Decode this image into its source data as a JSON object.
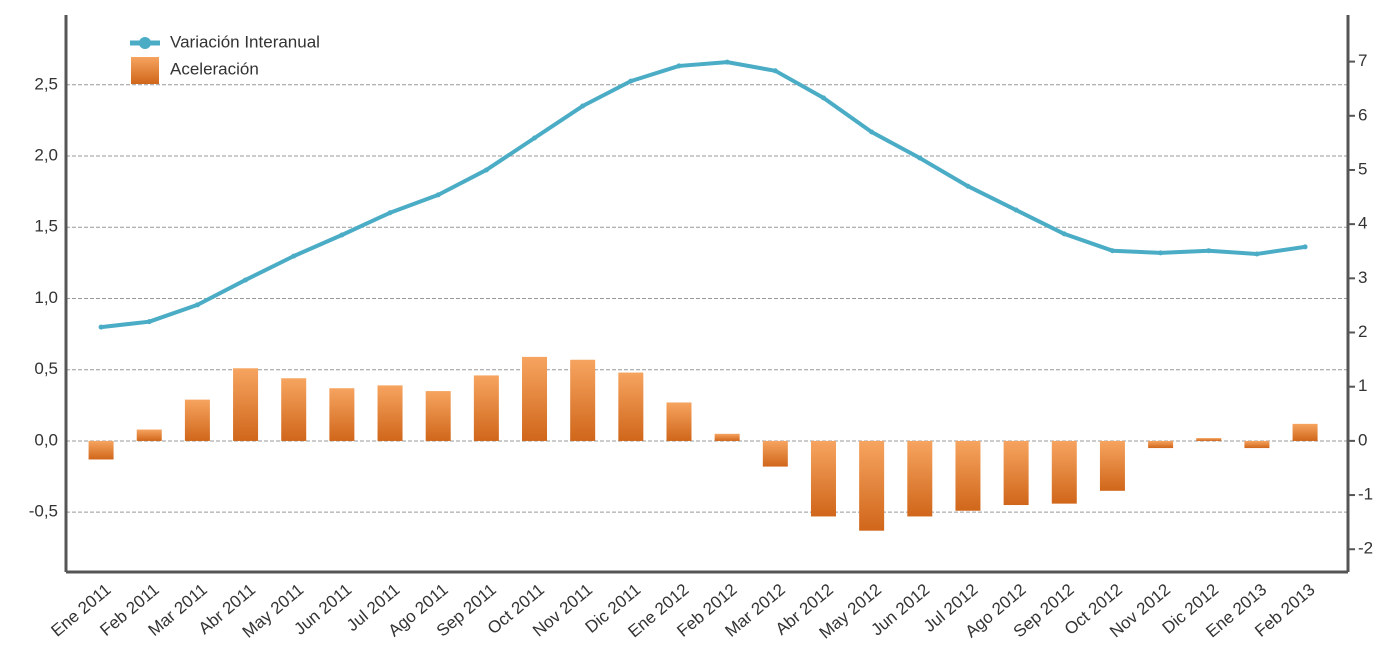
{
  "chart_data": {
    "type": "bar",
    "categories": [
      "Ene 2011",
      "Feb 2011",
      "Mar 2011",
      "Abr 2011",
      "May 2011",
      "Jun 2011",
      "Jul 2011",
      "Ago 2011",
      "Sep 2011",
      "Oct 2011",
      "Nov 2011",
      "Dic 2011",
      "Ene 2012",
      "Feb 2012",
      "Mar 2012",
      "Abr 2012",
      "May 2012",
      "Jun 2012",
      "Jul 2012",
      "Ago 2012",
      "Sep 2012",
      "Oct 2012",
      "Nov 2012",
      "Dic 2012",
      "Ene 2013",
      "Feb 2013"
    ],
    "series": [
      {
        "name": "Variación Interanual",
        "type": "line",
        "axis": "y2",
        "color": "#4bacc6",
        "values": [
          2.1,
          2.2,
          2.51,
          2.97,
          3.41,
          3.8,
          4.21,
          4.54,
          5.0,
          5.59,
          6.18,
          6.64,
          6.92,
          6.99,
          6.83,
          6.33,
          5.7,
          5.22,
          4.7,
          4.26,
          3.82,
          3.51,
          3.47,
          3.51,
          3.45,
          3.58
        ]
      },
      {
        "name": "Aceleración",
        "type": "bar",
        "color": "#e07a2e",
        "values": [
          -0.13,
          0.08,
          0.29,
          0.51,
          0.44,
          0.37,
          0.39,
          0.35,
          0.46,
          0.59,
          0.57,
          0.48,
          0.27,
          0.05,
          -0.18,
          -0.53,
          -0.63,
          -0.53,
          -0.49,
          -0.45,
          -0.44,
          -0.35,
          -0.05,
          0.02,
          -0.05,
          0.12
        ]
      }
    ],
    "ylim": [
      -0.92,
      2.99
    ],
    "yticks": [
      {
        "value": -0.5,
        "label": "-0,5"
      },
      {
        "value": 0,
        "label": "0,0"
      },
      {
        "value": 0.5,
        "label": "0,5"
      },
      {
        "value": 1,
        "label": "1,0"
      },
      {
        "value": 1.5,
        "label": "1,5"
      },
      {
        "value": 2,
        "label": "2,0"
      },
      {
        "value": 2.5,
        "label": "2,5"
      }
    ],
    "y2lim": [
      -2.42,
      7.86
    ],
    "y2ticks": [
      -2,
      -1,
      0,
      1,
      2,
      3,
      4,
      5,
      6,
      7
    ],
    "grid": true,
    "legend": "top-left"
  }
}
